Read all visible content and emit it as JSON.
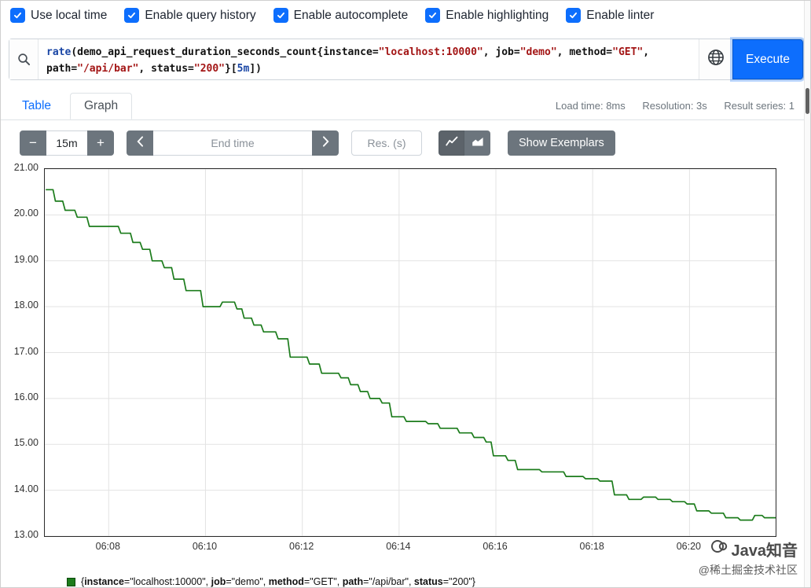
{
  "settings": {
    "items": [
      {
        "slug": "use-local-time",
        "label": "Use local time",
        "checked": true
      },
      {
        "slug": "enable-query-history",
        "label": "Enable query history",
        "checked": true
      },
      {
        "slug": "enable-autocomplete",
        "label": "Enable autocomplete",
        "checked": true
      },
      {
        "slug": "enable-highlighting",
        "label": "Enable highlighting",
        "checked": true
      },
      {
        "slug": "enable-linter",
        "label": "Enable linter",
        "checked": true
      }
    ]
  },
  "query": {
    "execute_label": "Execute",
    "full_text": "rate(demo_api_request_duration_seconds_count{instance=\"localhost:10000\", job=\"demo\", method=\"GET\", path=\"/api/bar\", status=\"200\"}[5m])",
    "tokens": [
      {
        "text": "rate",
        "cls": "fn"
      },
      {
        "text": "(",
        "cls": "paren"
      },
      {
        "text": "demo_api_request_duration_seconds_count",
        "cls": "metric"
      },
      {
        "text": "{",
        "cls": "brace"
      },
      {
        "text": "instance",
        "cls": "label"
      },
      {
        "text": "=",
        "cls": "op"
      },
      {
        "text": "\"localhost:10000\"",
        "cls": "str"
      },
      {
        "text": ", ",
        "cls": "op"
      },
      {
        "text": "job",
        "cls": "label"
      },
      {
        "text": "=",
        "cls": "op"
      },
      {
        "text": "\"demo\"",
        "cls": "str"
      },
      {
        "text": ", ",
        "cls": "op"
      },
      {
        "text": "method",
        "cls": "label"
      },
      {
        "text": "=",
        "cls": "op"
      },
      {
        "text": "\"GET\"",
        "cls": "str"
      },
      {
        "text": ", ",
        "cls": "op"
      },
      {
        "text": "path",
        "cls": "label"
      },
      {
        "text": "=",
        "cls": "op"
      },
      {
        "text": "\"/api/bar\"",
        "cls": "str"
      },
      {
        "text": ", ",
        "cls": "op"
      },
      {
        "text": "status",
        "cls": "label"
      },
      {
        "text": "=",
        "cls": "op"
      },
      {
        "text": "\"200\"",
        "cls": "str"
      },
      {
        "text": "}",
        "cls": "brace"
      },
      {
        "text": "[",
        "cls": "brace"
      },
      {
        "text": "5m",
        "cls": "dur"
      },
      {
        "text": "]",
        "cls": "brace"
      },
      {
        "text": ")",
        "cls": "paren"
      }
    ]
  },
  "tabs": {
    "table": "Table",
    "graph": "Graph"
  },
  "stats": {
    "load_time": "Load time: 8ms",
    "resolution": "Resolution: 3s",
    "result_series": "Result series: 1"
  },
  "controls": {
    "range_minus": "−",
    "range_value": "15m",
    "range_plus": "+",
    "end_time_placeholder": "End time",
    "res_placeholder": "Res. (s)",
    "show_exemplars": "Show Exemplars"
  },
  "icons": {
    "search": "magnifier",
    "globe": "metrics-explorer-globe",
    "prev": "chevron-left",
    "next": "chevron-right",
    "chart_line": "line-chart",
    "chart_stacked": "stacked-area-chart",
    "check": "checkmark"
  },
  "colors": {
    "primary": "#0d6efd",
    "secondary": "#6c757d",
    "series_green": "#1c7c1c",
    "string_red": "#a31515"
  },
  "chart_data": {
    "type": "line",
    "title": "",
    "xlabel": "",
    "ylabel": "",
    "grid": true,
    "legend_position": "bottom",
    "x_axis": {
      "lim": [
        6.68,
        21.78
      ],
      "unit": "minutes after 06:00 (HH:MM shown)",
      "ticks": [
        {
          "v": 8,
          "label": "06:08"
        },
        {
          "v": 10,
          "label": "06:10"
        },
        {
          "v": 12,
          "label": "06:12"
        },
        {
          "v": 14,
          "label": "06:14"
        },
        {
          "v": 16,
          "label": "06:16"
        },
        {
          "v": 18,
          "label": "06:18"
        },
        {
          "v": 20,
          "label": "06:20"
        }
      ]
    },
    "y_axis": {
      "lim": [
        13,
        21
      ],
      "ticks": [
        {
          "v": 13,
          "label": "13.00"
        },
        {
          "v": 14,
          "label": "14.00"
        },
        {
          "v": 15,
          "label": "15.00"
        },
        {
          "v": 16,
          "label": "16.00"
        },
        {
          "v": 17,
          "label": "17.00"
        },
        {
          "v": 18,
          "label": "18.00"
        },
        {
          "v": 19,
          "label": "19.00"
        },
        {
          "v": 20,
          "label": "20.00"
        },
        {
          "v": 21,
          "label": "21.00"
        }
      ]
    },
    "series": [
      {
        "name": "{instance=\"localhost:10000\", job=\"demo\", method=\"GET\", path=\"/api/bar\", status=\"200\"}",
        "color": "#1c7c1c",
        "points": [
          [
            6.7,
            20.55
          ],
          [
            6.85,
            20.55
          ],
          [
            6.9,
            20.3
          ],
          [
            7.05,
            20.3
          ],
          [
            7.1,
            20.1
          ],
          [
            7.3,
            20.1
          ],
          [
            7.35,
            19.95
          ],
          [
            7.55,
            19.95
          ],
          [
            7.6,
            19.75
          ],
          [
            8.2,
            19.75
          ],
          [
            8.25,
            19.6
          ],
          [
            8.45,
            19.6
          ],
          [
            8.5,
            19.4
          ],
          [
            8.65,
            19.4
          ],
          [
            8.7,
            19.25
          ],
          [
            8.85,
            19.25
          ],
          [
            8.9,
            19.0
          ],
          [
            9.1,
            19.0
          ],
          [
            9.15,
            18.85
          ],
          [
            9.3,
            18.85
          ],
          [
            9.35,
            18.6
          ],
          [
            9.55,
            18.6
          ],
          [
            9.6,
            18.35
          ],
          [
            9.9,
            18.35
          ],
          [
            9.95,
            18.0
          ],
          [
            10.3,
            18.0
          ],
          [
            10.35,
            18.1
          ],
          [
            10.6,
            18.1
          ],
          [
            10.65,
            17.95
          ],
          [
            10.75,
            17.95
          ],
          [
            10.8,
            17.75
          ],
          [
            10.95,
            17.75
          ],
          [
            11.0,
            17.6
          ],
          [
            11.15,
            17.6
          ],
          [
            11.2,
            17.45
          ],
          [
            11.45,
            17.45
          ],
          [
            11.5,
            17.3
          ],
          [
            11.7,
            17.3
          ],
          [
            11.75,
            16.9
          ],
          [
            12.1,
            16.9
          ],
          [
            12.15,
            16.75
          ],
          [
            12.35,
            16.75
          ],
          [
            12.4,
            16.55
          ],
          [
            12.75,
            16.55
          ],
          [
            12.8,
            16.45
          ],
          [
            12.95,
            16.45
          ],
          [
            13.0,
            16.3
          ],
          [
            13.15,
            16.3
          ],
          [
            13.2,
            16.15
          ],
          [
            13.35,
            16.15
          ],
          [
            13.4,
            16.0
          ],
          [
            13.6,
            16.0
          ],
          [
            13.65,
            15.9
          ],
          [
            13.8,
            15.9
          ],
          [
            13.85,
            15.6
          ],
          [
            14.1,
            15.6
          ],
          [
            14.15,
            15.5
          ],
          [
            14.55,
            15.5
          ],
          [
            14.6,
            15.45
          ],
          [
            14.8,
            15.45
          ],
          [
            14.85,
            15.35
          ],
          [
            15.2,
            15.35
          ],
          [
            15.25,
            15.25
          ],
          [
            15.5,
            15.25
          ],
          [
            15.55,
            15.15
          ],
          [
            15.75,
            15.15
          ],
          [
            15.8,
            15.05
          ],
          [
            15.9,
            15.05
          ],
          [
            15.95,
            14.75
          ],
          [
            16.2,
            14.75
          ],
          [
            16.25,
            14.65
          ],
          [
            16.4,
            14.65
          ],
          [
            16.45,
            14.45
          ],
          [
            16.9,
            14.45
          ],
          [
            16.95,
            14.4
          ],
          [
            17.4,
            14.4
          ],
          [
            17.45,
            14.3
          ],
          [
            17.8,
            14.3
          ],
          [
            17.85,
            14.25
          ],
          [
            18.1,
            14.25
          ],
          [
            18.15,
            14.2
          ],
          [
            18.4,
            14.2
          ],
          [
            18.45,
            13.9
          ],
          [
            18.7,
            13.9
          ],
          [
            18.75,
            13.8
          ],
          [
            19.0,
            13.8
          ],
          [
            19.05,
            13.85
          ],
          [
            19.3,
            13.85
          ],
          [
            19.35,
            13.8
          ],
          [
            19.6,
            13.8
          ],
          [
            19.65,
            13.75
          ],
          [
            19.9,
            13.75
          ],
          [
            19.95,
            13.7
          ],
          [
            20.1,
            13.7
          ],
          [
            20.15,
            13.55
          ],
          [
            20.4,
            13.55
          ],
          [
            20.45,
            13.5
          ],
          [
            20.7,
            13.5
          ],
          [
            20.75,
            13.4
          ],
          [
            21.0,
            13.4
          ],
          [
            21.05,
            13.35
          ],
          [
            21.3,
            13.35
          ],
          [
            21.35,
            13.45
          ],
          [
            21.5,
            13.45
          ],
          [
            21.55,
            13.4
          ],
          [
            21.78,
            13.4
          ]
        ]
      }
    ]
  },
  "legend": {
    "tokens": [
      {
        "t": "{",
        "b": 0
      },
      {
        "t": "instance",
        "b": 1
      },
      {
        "t": "=\"localhost:10000\", ",
        "b": 0
      },
      {
        "t": "job",
        "b": 1
      },
      {
        "t": "=\"demo\", ",
        "b": 0
      },
      {
        "t": "method",
        "b": 1
      },
      {
        "t": "=\"GET\", ",
        "b": 0
      },
      {
        "t": "path",
        "b": 1
      },
      {
        "t": "=\"/api/bar\", ",
        "b": 0
      },
      {
        "t": "status",
        "b": 1
      },
      {
        "t": "=\"200\"}",
        "b": 0
      }
    ]
  },
  "watermark": {
    "line1": "Java知音",
    "line2": "@稀土掘金技术社区"
  }
}
